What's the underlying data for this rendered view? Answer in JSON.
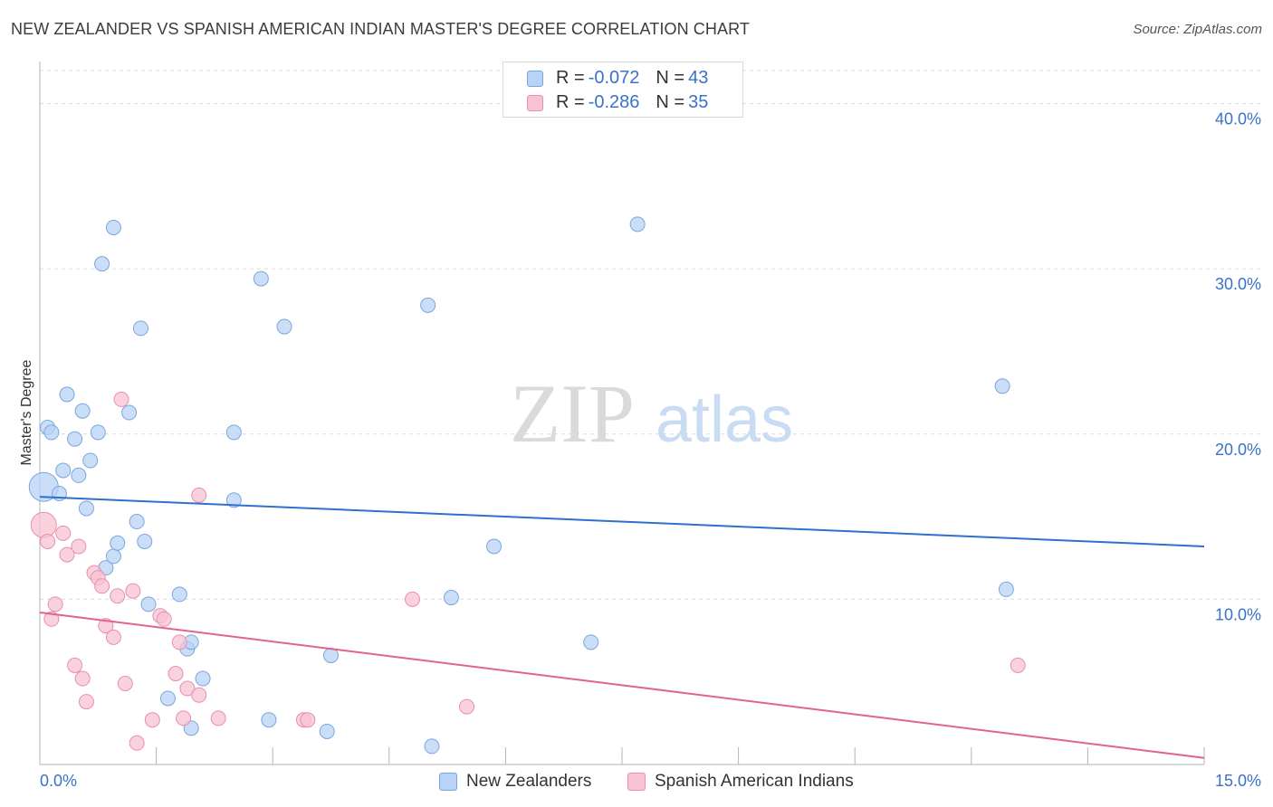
{
  "title": "NEW ZEALANDER VS SPANISH AMERICAN INDIAN MASTER'S DEGREE CORRELATION CHART",
  "source": "Source: ZipAtlas.com",
  "watermark": {
    "zip": "ZIP",
    "atlas": "atlas"
  },
  "legend": {
    "series1": {
      "r_label": "R = ",
      "r_value": "-0.072",
      "n_label": "N = ",
      "n_value": "43"
    },
    "series2": {
      "r_label": "R = ",
      "r_value": "-0.286",
      "n_label": "N = ",
      "n_value": "35"
    }
  },
  "bottom_legend": {
    "series1": "New Zealanders",
    "series2": "Spanish American Indians"
  },
  "colors": {
    "blue_fill": "#b8d3f5",
    "blue_stroke": "#7aa6df",
    "blue_line": "#2e6fcf",
    "pink_fill": "#f7c3d3",
    "pink_stroke": "#e98fab",
    "pink_line": "#e0628f",
    "tick_text": "#3a72c8",
    "grid": "#dcdcdc"
  },
  "chart_data": {
    "type": "scatter",
    "title": "NEW ZEALANDER VS SPANISH AMERICAN INDIAN MASTER'S DEGREE CORRELATION CHART",
    "xlabel": "",
    "ylabel": "Master's Degree",
    "xlim": [
      0,
      15
    ],
    "ylim": [
      0,
      42
    ],
    "x_tick_labels": [
      "0.0%",
      "15.0%"
    ],
    "y_ticks": [
      10,
      20,
      30,
      40
    ],
    "y_tick_labels": [
      "10.0%",
      "20.0%",
      "30.0%",
      "40.0%"
    ],
    "grid": true,
    "legend_position": "top-center",
    "series": [
      {
        "name": "New Zealanders",
        "color": "#b8d3f5",
        "r": -0.072,
        "n": 43,
        "trend": {
          "x": [
            0,
            15
          ],
          "y": [
            16.2,
            13.2
          ]
        },
        "points": [
          [
            0.05,
            16.8
          ],
          [
            0.1,
            20.4
          ],
          [
            0.15,
            20.1
          ],
          [
            0.25,
            16.4
          ],
          [
            0.3,
            17.8
          ],
          [
            0.35,
            22.4
          ],
          [
            0.45,
            19.7
          ],
          [
            0.5,
            17.5
          ],
          [
            0.55,
            21.4
          ],
          [
            0.6,
            15.5
          ],
          [
            0.65,
            18.4
          ],
          [
            0.75,
            20.1
          ],
          [
            0.8,
            30.3
          ],
          [
            0.85,
            11.9
          ],
          [
            0.95,
            32.5
          ],
          [
            0.95,
            12.6
          ],
          [
            1.0,
            13.4
          ],
          [
            1.15,
            21.3
          ],
          [
            1.25,
            14.7
          ],
          [
            1.3,
            26.4
          ],
          [
            1.35,
            13.5
          ],
          [
            1.4,
            9.7
          ],
          [
            1.65,
            4.0
          ],
          [
            1.8,
            10.3
          ],
          [
            1.9,
            7.0
          ],
          [
            1.95,
            2.2
          ],
          [
            1.95,
            7.4
          ],
          [
            2.1,
            5.2
          ],
          [
            2.5,
            20.1
          ],
          [
            2.5,
            16.0
          ],
          [
            2.85,
            29.4
          ],
          [
            2.95,
            2.7
          ],
          [
            3.15,
            26.5
          ],
          [
            3.7,
            2.0
          ],
          [
            3.75,
            6.6
          ],
          [
            5.0,
            27.8
          ],
          [
            5.05,
            1.1
          ],
          [
            5.3,
            10.1
          ],
          [
            5.85,
            13.2
          ],
          [
            7.1,
            7.4
          ],
          [
            7.7,
            32.7
          ],
          [
            12.4,
            22.9
          ],
          [
            12.45,
            10.6
          ]
        ]
      },
      {
        "name": "Spanish American Indians",
        "color": "#f7c3d3",
        "r": -0.286,
        "n": 35,
        "trend": {
          "x": [
            0,
            15
          ],
          "y": [
            9.2,
            0.4
          ]
        },
        "points": [
          [
            0.05,
            14.5
          ],
          [
            0.1,
            13.5
          ],
          [
            0.15,
            8.8
          ],
          [
            0.2,
            9.7
          ],
          [
            0.3,
            14.0
          ],
          [
            0.35,
            12.7
          ],
          [
            0.45,
            6.0
          ],
          [
            0.5,
            13.2
          ],
          [
            0.55,
            5.2
          ],
          [
            0.6,
            3.8
          ],
          [
            0.7,
            11.6
          ],
          [
            0.75,
            11.3
          ],
          [
            0.8,
            10.8
          ],
          [
            0.85,
            8.4
          ],
          [
            0.95,
            7.7
          ],
          [
            1.0,
            10.2
          ],
          [
            1.1,
            4.9
          ],
          [
            1.05,
            22.1
          ],
          [
            1.2,
            10.5
          ],
          [
            1.25,
            1.3
          ],
          [
            1.45,
            2.7
          ],
          [
            1.55,
            9.0
          ],
          [
            1.6,
            8.8
          ],
          [
            1.75,
            5.5
          ],
          [
            1.8,
            7.4
          ],
          [
            1.85,
            2.8
          ],
          [
            1.9,
            4.6
          ],
          [
            2.05,
            4.2
          ],
          [
            2.05,
            16.3
          ],
          [
            2.3,
            2.8
          ],
          [
            3.4,
            2.7
          ],
          [
            3.45,
            2.7
          ],
          [
            4.8,
            10.0
          ],
          [
            5.5,
            3.5
          ],
          [
            12.6,
            6.0
          ]
        ]
      }
    ]
  }
}
